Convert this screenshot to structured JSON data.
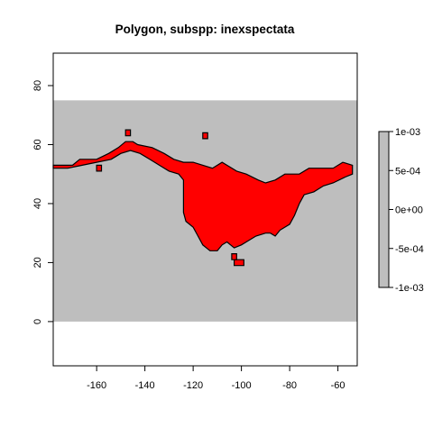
{
  "chart_data": {
    "type": "heatmap",
    "title": "Polygon, subspp: inexspectata",
    "xlabel": "",
    "ylabel": "",
    "xlim": [
      -178,
      -52
    ],
    "ylim": [
      -15,
      91
    ],
    "x_ticks": [
      -160,
      -140,
      -120,
      -100,
      -80,
      -60
    ],
    "y_ticks": [
      0,
      20,
      40,
      60,
      80
    ],
    "raster_extent": {
      "xmin": -178,
      "xmax": -52,
      "ymin": 0,
      "ymax": 75
    },
    "raster_fill_value": 0,
    "raster_color": "#bebebe",
    "polygon": {
      "fill": "#ff0000",
      "stroke": "#000000",
      "vertices": [
        [
          -178,
          53
        ],
        [
          -170,
          53
        ],
        [
          -167,
          55
        ],
        [
          -160,
          55
        ],
        [
          -155,
          57
        ],
        [
          -151,
          59
        ],
        [
          -148,
          61
        ],
        [
          -145,
          61
        ],
        [
          -143,
          60
        ],
        [
          -137,
          59
        ],
        [
          -132,
          57
        ],
        [
          -128,
          55
        ],
        [
          -124,
          54
        ],
        [
          -120,
          54
        ],
        [
          -112,
          52
        ],
        [
          -108,
          54
        ],
        [
          -102,
          51
        ],
        [
          -98,
          50
        ],
        [
          -93,
          48
        ],
        [
          -90,
          47
        ],
        [
          -86,
          48
        ],
        [
          -82,
          50
        ],
        [
          -76,
          50
        ],
        [
          -72,
          52
        ],
        [
          -62,
          52
        ],
        [
          -58,
          54
        ],
        [
          -54,
          53
        ],
        [
          -54,
          50
        ],
        [
          -57,
          49
        ],
        [
          -62,
          47
        ],
        [
          -66,
          46
        ],
        [
          -70,
          44
        ],
        [
          -74,
          43
        ],
        [
          -76,
          40
        ],
        [
          -78,
          36
        ],
        [
          -80,
          33
        ],
        [
          -82,
          32
        ],
        [
          -84,
          31
        ],
        [
          -86,
          29
        ],
        [
          -88,
          30
        ],
        [
          -90,
          30
        ],
        [
          -94,
          29
        ],
        [
          -98,
          27
        ],
        [
          -100,
          26
        ],
        [
          -103,
          25
        ],
        [
          -106,
          27
        ],
        [
          -108,
          26
        ],
        [
          -110,
          24
        ],
        [
          -113,
          24
        ],
        [
          -116,
          26
        ],
        [
          -118,
          29
        ],
        [
          -120,
          32
        ],
        [
          -123,
          34
        ],
        [
          -124,
          37
        ],
        [
          -124,
          44
        ],
        [
          -124,
          48
        ],
        [
          -126,
          50
        ],
        [
          -130,
          51
        ],
        [
          -134,
          53
        ],
        [
          -138,
          55
        ],
        [
          -142,
          57
        ],
        [
          -146,
          58
        ],
        [
          -150,
          57
        ],
        [
          -154,
          55
        ],
        [
          -160,
          54
        ],
        [
          -166,
          53
        ],
        [
          -172,
          52
        ],
        [
          -178,
          52
        ]
      ],
      "patches": [
        [
          [
            -103,
            21
          ],
          [
            -99,
            21
          ],
          [
            -99,
            19
          ],
          [
            -103,
            19
          ]
        ],
        [
          [
            -104,
            23
          ],
          [
            -102,
            23
          ],
          [
            -102,
            21
          ],
          [
            -104,
            21
          ]
        ],
        [
          [
            -116,
            64
          ],
          [
            -114,
            64
          ],
          [
            -114,
            62
          ],
          [
            -116,
            62
          ]
        ],
        [
          [
            -148,
            65
          ],
          [
            -146,
            65
          ],
          [
            -146,
            63
          ],
          [
            -148,
            63
          ]
        ],
        [
          [
            -160,
            53
          ],
          [
            -158,
            53
          ],
          [
            -158,
            51
          ],
          [
            -160,
            51
          ]
        ]
      ]
    },
    "colorbar": {
      "ticks": [
        "1e-03",
        "5e-04",
        "0e+00",
        "-5e-04",
        "-1e-03"
      ],
      "range": [
        -0.001,
        0.001
      ],
      "color": "#bebebe"
    }
  }
}
